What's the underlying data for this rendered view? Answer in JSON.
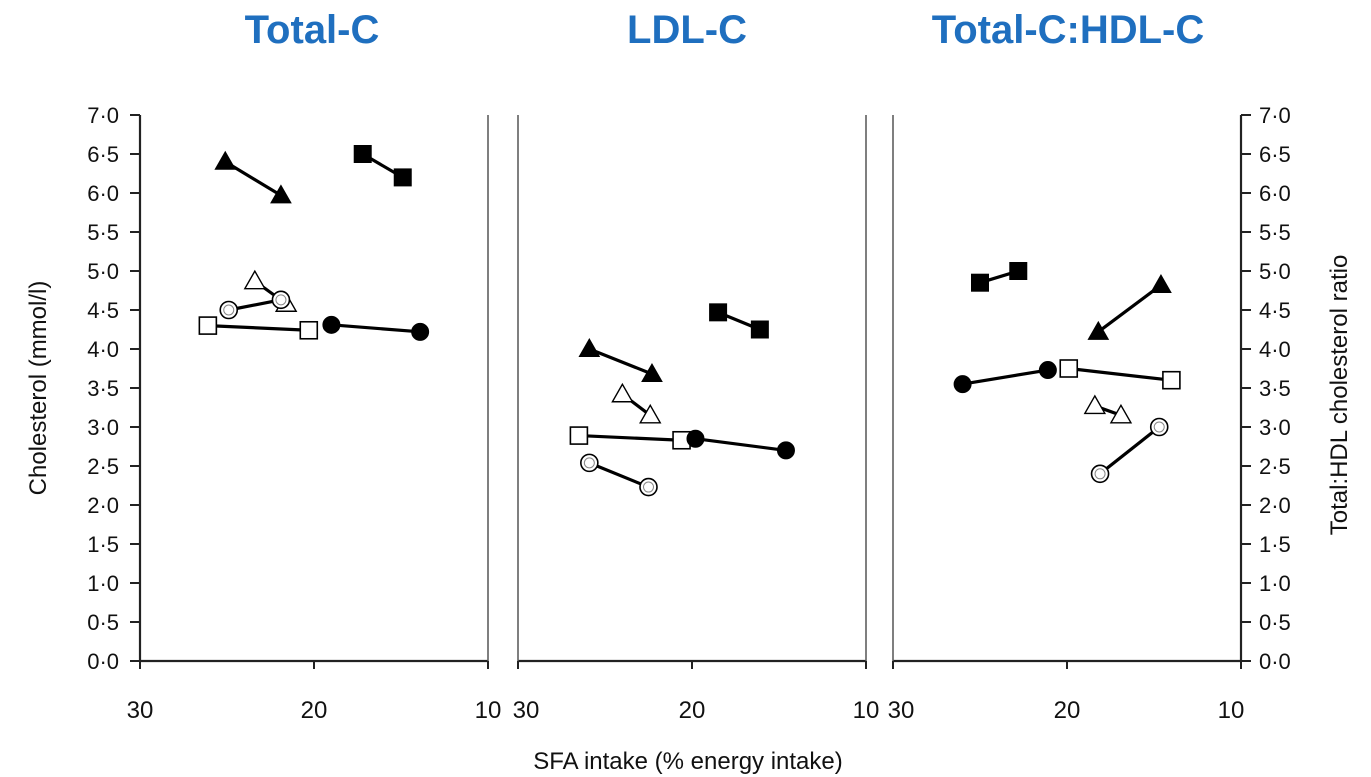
{
  "x_label": "SFA intake (% energy intake)",
  "y_label_left": "Cholesterol (mmol/l)",
  "y_label_right": "Total:HDL cholesterol ratio",
  "chart_data": [
    {
      "type": "line",
      "title": "Total-C",
      "xlim": [
        30,
        10
      ],
      "ylim": [
        0,
        7
      ],
      "xticks": [
        "30",
        "20",
        "10"
      ],
      "yticks": [
        "0·0",
        "0·5",
        "1·0",
        "1·5",
        "2·0",
        "2·5",
        "3·0",
        "3·5",
        "4·0",
        "4·5",
        "5·0",
        "5·5",
        "6·0",
        "6·5",
        "7·0"
      ],
      "series": [
        {
          "marker": "filled-triangle",
          "points": [
            [
              25.1,
              6.4
            ],
            [
              21.9,
              5.97
            ]
          ]
        },
        {
          "marker": "filled-square",
          "points": [
            [
              17.2,
              6.5
            ],
            [
              14.9,
              6.2
            ]
          ]
        },
        {
          "marker": "open-triangle",
          "points": [
            [
              23.4,
              4.87
            ],
            [
              21.6,
              4.58
            ]
          ]
        },
        {
          "marker": "open-circle",
          "points": [
            [
              24.9,
              4.5
            ],
            [
              21.9,
              4.63
            ]
          ]
        },
        {
          "marker": "open-square",
          "points": [
            [
              26.1,
              4.3
            ],
            [
              20.3,
              4.24
            ]
          ]
        },
        {
          "marker": "filled-circle",
          "points": [
            [
              19.0,
              4.31
            ],
            [
              13.9,
              4.22
            ]
          ]
        }
      ]
    },
    {
      "type": "line",
      "title": "LDL-C",
      "xlim": [
        30,
        10
      ],
      "ylim": [
        0,
        7
      ],
      "xticks": [
        "30",
        "20",
        "10"
      ],
      "yticks": [],
      "series": [
        {
          "marker": "filled-triangle",
          "points": [
            [
              25.9,
              4.0
            ],
            [
              22.3,
              3.68
            ]
          ]
        },
        {
          "marker": "filled-square",
          "points": [
            [
              18.5,
              4.47
            ],
            [
              16.1,
              4.25
            ]
          ]
        },
        {
          "marker": "open-triangle",
          "points": [
            [
              24.0,
              3.42
            ],
            [
              22.4,
              3.15
            ]
          ]
        },
        {
          "marker": "open-square",
          "points": [
            [
              26.5,
              2.89
            ],
            [
              20.6,
              2.83
            ]
          ]
        },
        {
          "marker": "filled-circle",
          "points": [
            [
              19.8,
              2.85
            ],
            [
              14.6,
              2.7
            ]
          ]
        },
        {
          "marker": "open-circle",
          "points": [
            [
              25.9,
              2.54
            ],
            [
              22.5,
              2.23
            ]
          ]
        }
      ]
    },
    {
      "type": "line",
      "title": "Total-C:HDL-C",
      "xlim": [
        30,
        10
      ],
      "ylim": [
        0,
        7
      ],
      "xticks": [
        "30",
        "20",
        "10"
      ],
      "yticks": [
        "0·0",
        "0·5",
        "1·0",
        "1·5",
        "2·0",
        "2·5",
        "3·0",
        "3·5",
        "4·0",
        "4·5",
        "5·0",
        "5·5",
        "6·0",
        "6·5",
        "7·0"
      ],
      "series": [
        {
          "marker": "filled-square",
          "points": [
            [
              25.0,
              4.85
            ],
            [
              22.8,
              5.0
            ]
          ]
        },
        {
          "marker": "filled-triangle",
          "points": [
            [
              18.2,
              4.22
            ],
            [
              14.6,
              4.82
            ]
          ]
        },
        {
          "marker": "filled-circle",
          "points": [
            [
              26.0,
              3.55
            ],
            [
              21.1,
              3.73
            ]
          ]
        },
        {
          "marker": "open-square",
          "points": [
            [
              19.9,
              3.75
            ],
            [
              14.0,
              3.6
            ]
          ]
        },
        {
          "marker": "open-triangle",
          "points": [
            [
              18.4,
              3.27
            ],
            [
              16.9,
              3.15
            ]
          ]
        },
        {
          "marker": "open-circle",
          "points": [
            [
              18.1,
              2.4
            ],
            [
              14.7,
              3.0
            ]
          ]
        }
      ]
    }
  ]
}
